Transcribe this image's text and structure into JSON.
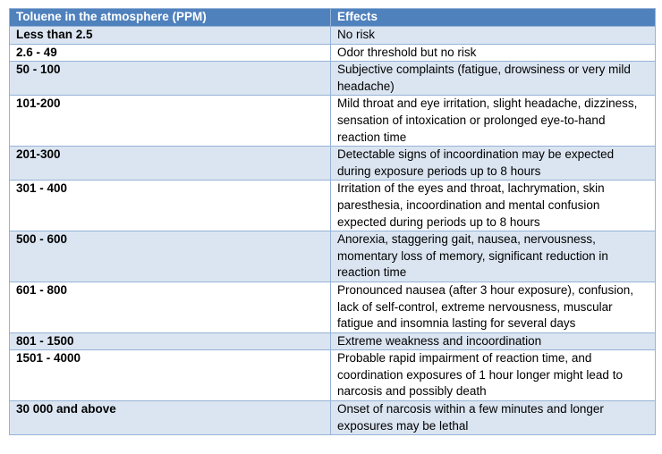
{
  "headers": {
    "ppm": "Toluene in the atmosphere (PPM)",
    "effects": "Effects"
  },
  "rows": [
    {
      "ppm": "Less than 2.5",
      "effect": "No risk"
    },
    {
      "ppm": "2.6 - 49",
      "effect": "Odor threshold but no risk"
    },
    {
      "ppm": "50 - 100",
      "effect": "Subjective complaints (fatigue, drowsiness or very mild headache)"
    },
    {
      "ppm": "101-200",
      "effect": " Mild throat and eye irritation, slight headache, dizziness, sensation of intoxication or prolonged eye-to-hand reaction time"
    },
    {
      "ppm": "201-300",
      "effect": "Detectable signs of incoordination may be expected during exposure periods up to 8 hours"
    },
    {
      "ppm": "301 - 400",
      "effect": "Irritation of the eyes and throat, lachrymation, skin paresthesia, incoordination and mental confusion expected during periods up to 8 hours"
    },
    {
      "ppm": "500 - 600",
      "effect": "Anorexia, staggering gait, nausea, nervousness, momentary loss of memory, significant reduction in reaction time"
    },
    {
      "ppm": "601 - 800",
      "effect": "Pronounced nausea (after 3 hour exposure), confusion, lack of self-control, extreme nervousness, muscular fatigue and insomnia lasting for several days"
    },
    {
      "ppm": "801 - 1500",
      "effect": "Extreme weakness and incoordination"
    },
    {
      "ppm": "1501 - 4000",
      "effect": "Probable rapid impairment of reaction time, and coordination exposures of 1 hour longer might lead to narcosis and possibly death"
    },
    {
      "ppm": "30 000 and above",
      "effect": "Onset of narcosis within a few minutes and longer exposures may be lethal"
    }
  ],
  "colors": {
    "header_bg": "#4f81bd",
    "band_bg": "#dbe5f1",
    "border": "#95b3d7"
  }
}
